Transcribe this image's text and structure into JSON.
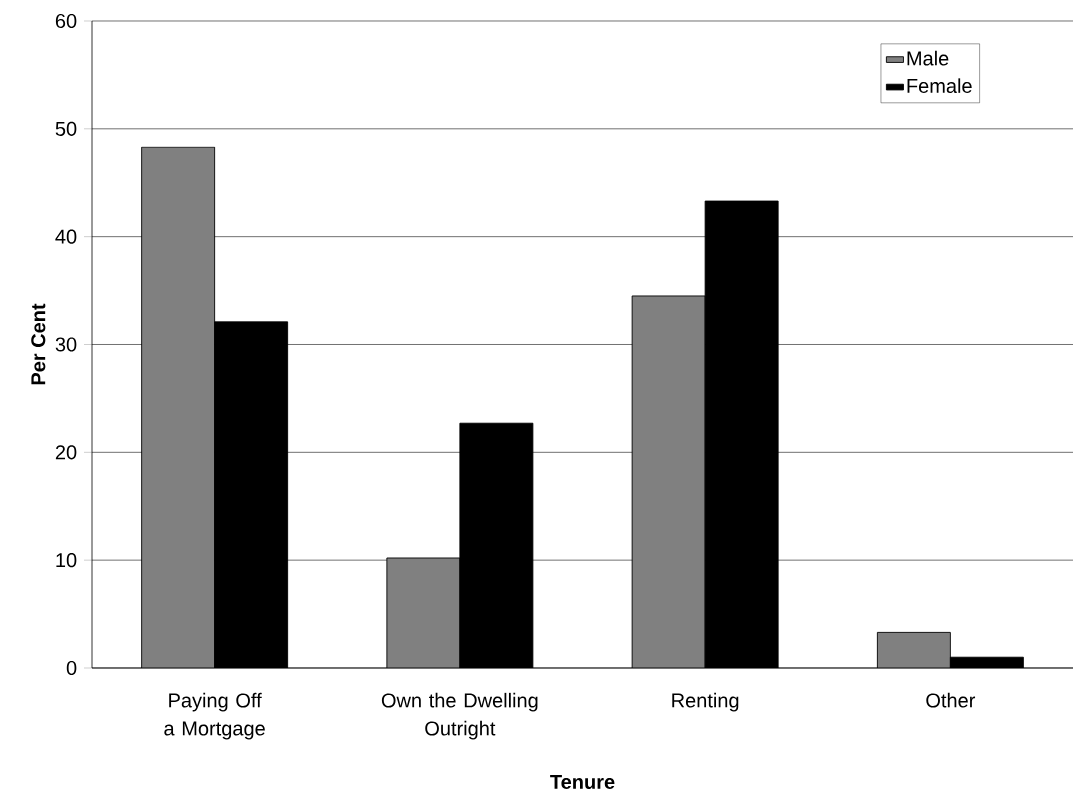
{
  "chart_data": {
    "type": "bar",
    "xlabel": "Tenure",
    "ylabel": "Per Cent",
    "categories": [
      "Paying Off a Mortgage",
      "Own the Dwelling Outright",
      "Renting",
      "Other"
    ],
    "series": [
      {
        "name": "Male",
        "color": "#808080",
        "values": [
          48.3,
          10.2,
          34.5,
          3.3
        ]
      },
      {
        "name": "Female",
        "color": "#000000",
        "values": [
          32.1,
          22.7,
          43.3,
          1.0
        ]
      }
    ],
    "ylim": [
      0,
      60
    ],
    "yticks": [
      0,
      10,
      20,
      30,
      40,
      50,
      60
    ],
    "grid": "y",
    "legend": "top right"
  }
}
